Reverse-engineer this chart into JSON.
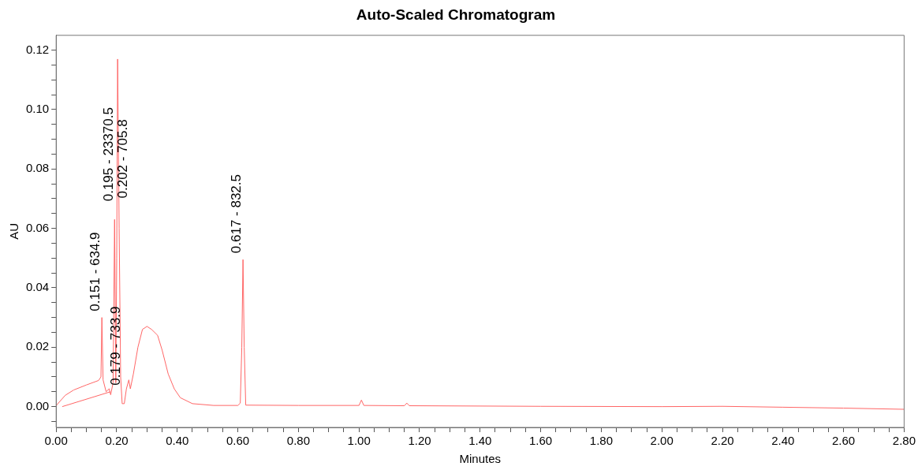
{
  "chart_data": {
    "type": "line",
    "title": "Auto-Scaled Chromatogram",
    "xlabel": "Minutes",
    "ylabel": "AU",
    "xlim": [
      0,
      2.8
    ],
    "ylim": [
      -0.007,
      0.125
    ],
    "xticks": [
      {
        "value": 0,
        "label": "0.00"
      },
      {
        "value": 0.05,
        "label": null
      },
      {
        "value": 0.1,
        "label": null
      },
      {
        "value": 0.15,
        "label": null
      },
      {
        "value": 0.2,
        "label": "0.20"
      },
      {
        "value": 0.25,
        "label": null
      },
      {
        "value": 0.3,
        "label": null
      },
      {
        "value": 0.35,
        "label": null
      },
      {
        "value": 0.4,
        "label": "0.40"
      },
      {
        "value": 0.45,
        "label": null
      },
      {
        "value": 0.5,
        "label": null
      },
      {
        "value": 0.55,
        "label": null
      },
      {
        "value": 0.6,
        "label": "0.60"
      },
      {
        "value": 0.65,
        "label": null
      },
      {
        "value": 0.7,
        "label": null
      },
      {
        "value": 0.75,
        "label": null
      },
      {
        "value": 0.8,
        "label": "0.80"
      },
      {
        "value": 0.85,
        "label": null
      },
      {
        "value": 0.9,
        "label": null
      },
      {
        "value": 0.95,
        "label": null
      },
      {
        "value": 1.0,
        "label": "1.00"
      },
      {
        "value": 1.05,
        "label": null
      },
      {
        "value": 1.1,
        "label": null
      },
      {
        "value": 1.15,
        "label": null
      },
      {
        "value": 1.2,
        "label": "1.20"
      },
      {
        "value": 1.25,
        "label": null
      },
      {
        "value": 1.3,
        "label": null
      },
      {
        "value": 1.35,
        "label": null
      },
      {
        "value": 1.4,
        "label": "1.40"
      },
      {
        "value": 1.45,
        "label": null
      },
      {
        "value": 1.5,
        "label": null
      },
      {
        "value": 1.55,
        "label": null
      },
      {
        "value": 1.6,
        "label": "1.60"
      },
      {
        "value": 1.65,
        "label": null
      },
      {
        "value": 1.7,
        "label": null
      },
      {
        "value": 1.75,
        "label": null
      },
      {
        "value": 1.8,
        "label": "1.80"
      },
      {
        "value": 1.85,
        "label": null
      },
      {
        "value": 1.9,
        "label": null
      },
      {
        "value": 1.95,
        "label": null
      },
      {
        "value": 2.0,
        "label": "2.00"
      },
      {
        "value": 2.05,
        "label": null
      },
      {
        "value": 2.1,
        "label": null
      },
      {
        "value": 2.15,
        "label": null
      },
      {
        "value": 2.2,
        "label": "2.20"
      },
      {
        "value": 2.25,
        "label": null
      },
      {
        "value": 2.3,
        "label": null
      },
      {
        "value": 2.35,
        "label": null
      },
      {
        "value": 2.4,
        "label": "2.40"
      },
      {
        "value": 2.45,
        "label": null
      },
      {
        "value": 2.5,
        "label": null
      },
      {
        "value": 2.55,
        "label": null
      },
      {
        "value": 2.6,
        "label": "2.60"
      },
      {
        "value": 2.65,
        "label": null
      },
      {
        "value": 2.7,
        "label": null
      },
      {
        "value": 2.75,
        "label": null
      },
      {
        "value": 2.8,
        "label": "2.80"
      }
    ],
    "yticks": [
      {
        "value": -0.005,
        "label": null
      },
      {
        "value": 0,
        "label": "0.00"
      },
      {
        "value": 0.005,
        "label": null
      },
      {
        "value": 0.01,
        "label": null
      },
      {
        "value": 0.015,
        "label": null
      },
      {
        "value": 0.02,
        "label": "0.02"
      },
      {
        "value": 0.025,
        "label": null
      },
      {
        "value": 0.03,
        "label": null
      },
      {
        "value": 0.035,
        "label": null
      },
      {
        "value": 0.04,
        "label": "0.04"
      },
      {
        "value": 0.045,
        "label": null
      },
      {
        "value": 0.05,
        "label": null
      },
      {
        "value": 0.055,
        "label": null
      },
      {
        "value": 0.06,
        "label": "0.06"
      },
      {
        "value": 0.065,
        "label": null
      },
      {
        "value": 0.07,
        "label": null
      },
      {
        "value": 0.075,
        "label": null
      },
      {
        "value": 0.08,
        "label": "0.08"
      },
      {
        "value": 0.085,
        "label": null
      },
      {
        "value": 0.09,
        "label": null
      },
      {
        "value": 0.095,
        "label": null
      },
      {
        "value": 0.1,
        "label": "0.10"
      },
      {
        "value": 0.105,
        "label": null
      },
      {
        "value": 0.11,
        "label": null
      },
      {
        "value": 0.115,
        "label": null
      },
      {
        "value": 0.12,
        "label": "0.12"
      }
    ],
    "grid": false,
    "legend": false,
    "marker": "none",
    "line_style": "solid",
    "series": [
      {
        "color": "#ff6666",
        "x": [
          0,
          0.01,
          0.03,
          0.058,
          0.1,
          0.14,
          0.148,
          0.151,
          0.155,
          0.165,
          0.175,
          0.18,
          0.188,
          0.193,
          0.197,
          0.2,
          0.203,
          0.208,
          0.213,
          0.218,
          0.225,
          0.232,
          0.24,
          0.245,
          0.255,
          0.27,
          0.285,
          0.3,
          0.315,
          0.335,
          0.35,
          0.37,
          0.39,
          0.41,
          0.45,
          0.52,
          0.6,
          0.608,
          0.613,
          0.617,
          0.621,
          0.626,
          0.8,
          1.0,
          1.008,
          1.016,
          1.15,
          1.158,
          1.166,
          1.6,
          2.0,
          2.2,
          2.4,
          2.6,
          2.8
        ],
        "values": [
          0.0003,
          0.0015,
          0.0038,
          0.0056,
          0.0073,
          0.0088,
          0.01,
          0.03,
          0.009,
          0.005,
          0.006,
          0.004,
          0.008,
          0.063,
          0.008,
          0.05,
          0.117,
          0.06,
          0.01,
          0.001,
          0.001,
          0.006,
          0.009,
          0.006,
          0.011,
          0.02,
          0.026,
          0.027,
          0.026,
          0.024,
          0.019,
          0.011,
          0.006,
          0.003,
          0.001,
          0.0004,
          0.0004,
          0.0012,
          0.02,
          0.0495,
          0.02,
          0.0005,
          0.0004,
          0.0004,
          0.0022,
          0.0004,
          0.0003,
          0.0012,
          0.0003,
          0.0001,
          0,
          0.0001,
          -0.0002,
          -0.0005,
          -0.0009
        ]
      },
      {
        "color": "#ff6666",
        "x": [
          0.02,
          0.179
        ],
        "values": [
          0,
          0.005
        ]
      }
    ],
    "annotations": [
      {
        "text": "0.151 - 634.9",
        "x": 0.151,
        "y": 0.03
      },
      {
        "text": "0.179 - 733.9",
        "x": 0.179,
        "y": 0.005
      },
      {
        "text": "0.195 - 23370.5",
        "x": 0.195,
        "y": 0.067
      },
      {
        "text": "0.202 - 705.8",
        "x": 0.202,
        "y": 0.068
      },
      {
        "text": "0.617 - 832.5",
        "x": 0.617,
        "y": 0.0495
      }
    ]
  }
}
